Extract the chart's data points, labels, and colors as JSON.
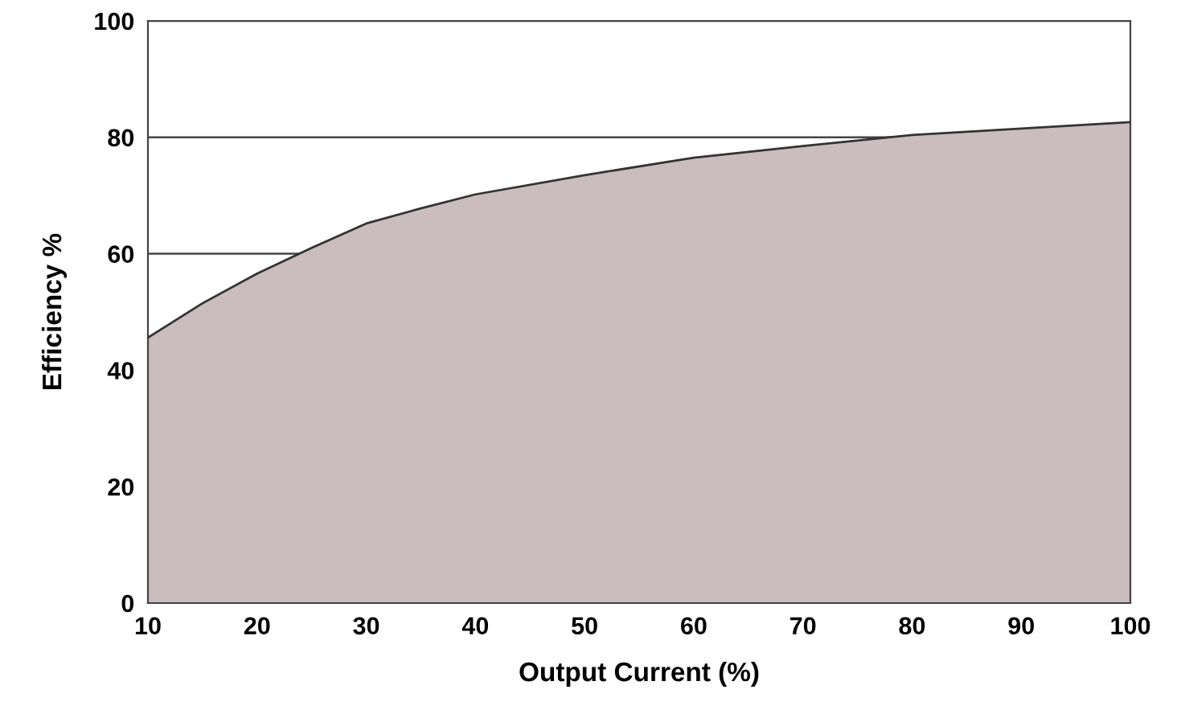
{
  "chart_data": {
    "type": "area",
    "xlabel": "Output Current (%)",
    "ylabel": "Efficiency %",
    "x": [
      10,
      15,
      20,
      25,
      30,
      35,
      40,
      50,
      60,
      70,
      80,
      90,
      100
    ],
    "series": [
      {
        "color": "#cbbcbe",
        "values": [
          45.6,
          51.5,
          56.6,
          61.0,
          65.2,
          67.8,
          70.2,
          73.5,
          76.5,
          78.5,
          80.4,
          81.5,
          82.6
        ]
      }
    ],
    "xlim": [
      10,
      100
    ],
    "ylim": [
      0,
      100
    ],
    "xticks": [
      10,
      20,
      30,
      40,
      50,
      60,
      70,
      80,
      90,
      100
    ],
    "yticks": [
      0,
      20,
      40,
      60,
      80,
      100
    ],
    "grid": "y"
  }
}
